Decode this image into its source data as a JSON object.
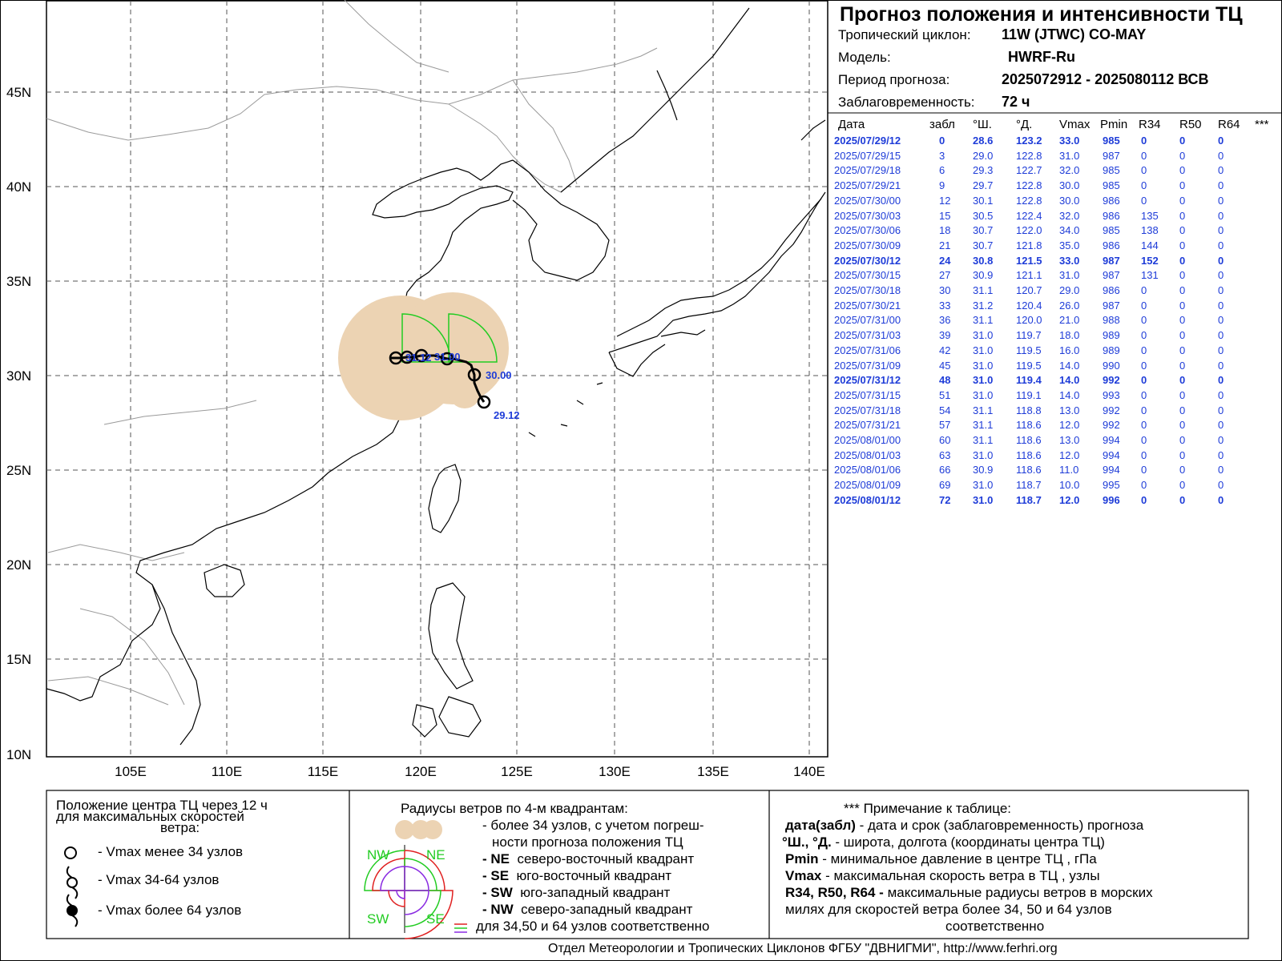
{
  "header": {
    "title": "Прогноз положения и интенсивности ТЦ",
    "cyclone_label": "Тропический циклон:",
    "cyclone_value": "11W (JTWC)  CO-MAY",
    "model_label": "Модель:",
    "model_value": "HWRF-Ru",
    "period_label": "Период прогноза:",
    "period_value": "2025072912 - 2025080112 ВСВ",
    "lead_label": "Заблаговременность:",
    "lead_value": "72 ч"
  },
  "table": {
    "columns": [
      "Дата",
      "забл",
      "°Ш.",
      "°Д.",
      "Vmax",
      "Pmin",
      "R34",
      "R50",
      "R64",
      "***"
    ],
    "rows": [
      [
        "2025/07/29/12",
        "0",
        "28.6",
        "123.2",
        "33.0",
        "985",
        "0",
        "0",
        "0"
      ],
      [
        "2025/07/29/15",
        "3",
        "29.0",
        "122.8",
        "31.0",
        "987",
        "0",
        "0",
        "0"
      ],
      [
        "2025/07/29/18",
        "6",
        "29.3",
        "122.7",
        "32.0",
        "985",
        "0",
        "0",
        "0"
      ],
      [
        "2025/07/29/21",
        "9",
        "29.7",
        "122.8",
        "30.0",
        "985",
        "0",
        "0",
        "0"
      ],
      [
        "2025/07/30/00",
        "12",
        "30.1",
        "122.8",
        "30.0",
        "986",
        "0",
        "0",
        "0"
      ],
      [
        "2025/07/30/03",
        "15",
        "30.5",
        "122.4",
        "32.0",
        "986",
        "135",
        "0",
        "0"
      ],
      [
        "2025/07/30/06",
        "18",
        "30.7",
        "122.0",
        "34.0",
        "985",
        "138",
        "0",
        "0"
      ],
      [
        "2025/07/30/09",
        "21",
        "30.7",
        "121.8",
        "35.0",
        "986",
        "144",
        "0",
        "0"
      ],
      [
        "2025/07/30/12",
        "24",
        "30.8",
        "121.5",
        "33.0",
        "987",
        "152",
        "0",
        "0"
      ],
      [
        "2025/07/30/15",
        "27",
        "30.9",
        "121.1",
        "31.0",
        "987",
        "131",
        "0",
        "0"
      ],
      [
        "2025/07/30/18",
        "30",
        "31.1",
        "120.7",
        "29.0",
        "986",
        "0",
        "0",
        "0"
      ],
      [
        "2025/07/30/21",
        "33",
        "31.2",
        "120.4",
        "26.0",
        "987",
        "0",
        "0",
        "0"
      ],
      [
        "2025/07/31/00",
        "36",
        "31.1",
        "120.0",
        "21.0",
        "988",
        "0",
        "0",
        "0"
      ],
      [
        "2025/07/31/03",
        "39",
        "31.0",
        "119.7",
        "18.0",
        "989",
        "0",
        "0",
        "0"
      ],
      [
        "2025/07/31/06",
        "42",
        "31.0",
        "119.5",
        "16.0",
        "989",
        "0",
        "0",
        "0"
      ],
      [
        "2025/07/31/09",
        "45",
        "31.0",
        "119.5",
        "14.0",
        "990",
        "0",
        "0",
        "0"
      ],
      [
        "2025/07/31/12",
        "48",
        "31.0",
        "119.4",
        "14.0",
        "992",
        "0",
        "0",
        "0"
      ],
      [
        "2025/07/31/15",
        "51",
        "31.0",
        "119.1",
        "14.0",
        "993",
        "0",
        "0",
        "0"
      ],
      [
        "2025/07/31/18",
        "54",
        "31.1",
        "118.8",
        "13.0",
        "992",
        "0",
        "0",
        "0"
      ],
      [
        "2025/07/31/21",
        "57",
        "31.1",
        "118.6",
        "12.0",
        "992",
        "0",
        "0",
        "0"
      ],
      [
        "2025/08/01/00",
        "60",
        "31.1",
        "118.6",
        "13.0",
        "994",
        "0",
        "0",
        "0"
      ],
      [
        "2025/08/01/03",
        "63",
        "31.0",
        "118.6",
        "12.0",
        "994",
        "0",
        "0",
        "0"
      ],
      [
        "2025/08/01/06",
        "66",
        "30.9",
        "118.6",
        "11.0",
        "994",
        "0",
        "0",
        "0"
      ],
      [
        "2025/08/01/09",
        "69",
        "31.0",
        "118.7",
        "10.0",
        "995",
        "0",
        "0",
        "0"
      ],
      [
        "2025/08/01/12",
        "72",
        "31.0",
        "118.7",
        "12.0",
        "996",
        "0",
        "0",
        "0"
      ]
    ],
    "bold_rows": [
      0,
      8,
      16,
      24
    ]
  },
  "map": {
    "lat_labels": [
      "45N",
      "40N",
      "35N",
      "30N",
      "25N",
      "20N",
      "15N",
      "10N"
    ],
    "lon_labels": [
      "105E",
      "110E",
      "115E",
      "120E",
      "125E",
      "130E",
      "135E",
      "140E"
    ],
    "track_labels": [
      "29.12",
      "30.00",
      "31.00",
      "31.12"
    ],
    "colors": {
      "track": "#000000",
      "label": "#1e3cd8",
      "r34_fill": "#ecd3b3",
      "quad_line": "#22cc22",
      "coast": "#000000",
      "border": "#9a9a9a"
    }
  },
  "legend": {
    "left": {
      "title_lines": [
        "Положение центра ТЦ через 12 ч",
        "для максимальных скоростей",
        "ветра:"
      ],
      "items": [
        "- Vmax  менее 34 узлов",
        "- Vmax  34-64 узлов",
        "- Vmax  более 64 узлов"
      ]
    },
    "middle": {
      "title": "Радиусы ветров по 4-м квадрантам:",
      "lines": [
        "- более 34 узлов, с учетом погреш-",
        "ности прогноза положения ТЦ"
      ],
      "quadrants": [
        {
          "code": "- NE",
          "text": "северо-восточный квадрант"
        },
        {
          "code": "- SE",
          "text": "юго-восточный квадрант"
        },
        {
          "code": "- SW",
          "text": "юго-западный квадрант"
        },
        {
          "code": "- NW",
          "text": "северо-западный квадрант"
        }
      ],
      "last_line": "для 34,50 и 64 узлов соответственно",
      "diagram_labels": {
        "nw": "NW",
        "ne": "NE",
        "sw": "SW",
        "se": "SE"
      }
    },
    "right": {
      "title": "*** Примечание к таблице:",
      "items": [
        {
          "key": "дата(забл)",
          "text": " - дата и срок (заблаговременность) прогноза"
        },
        {
          "key": "°Ш., °Д.",
          "text": " - широта, долгота   (координаты центра ТЦ)"
        },
        {
          "key": "Pmin",
          "text": "  - минимальное давление в центре ТЦ , гПа"
        },
        {
          "key": "Vmax",
          "text": "   -  максимальная скорость ветра в ТЦ , узлы"
        },
        {
          "key": "R34, R50, R64 -",
          "text": "  максимальные радиусы ветров в морских"
        }
      ],
      "tail_lines": [
        "милях для скоростей ветра более 34, 50 и 64 узлов",
        "соответственно"
      ]
    }
  },
  "footer": "Отдел Метеорологии и Тропических Циклонов ФГБУ \"ДВНИГМИ\",  http://www.ferhri.org"
}
